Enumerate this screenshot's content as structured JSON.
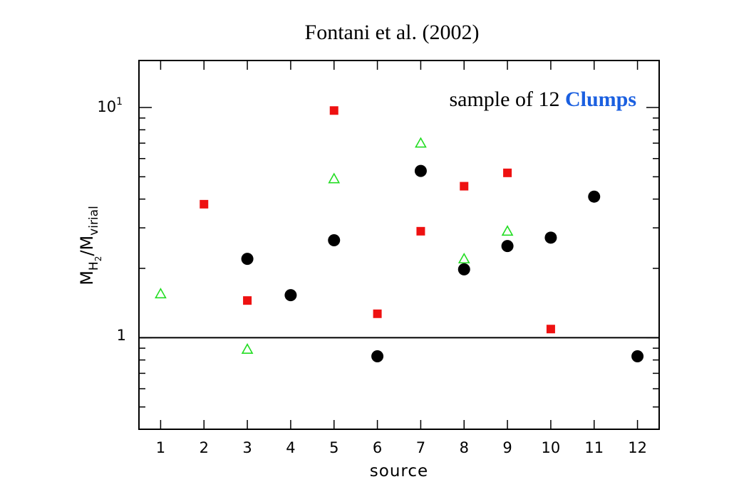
{
  "title": "Fontani et al. (2002)",
  "chart_data": {
    "type": "scatter",
    "title": "Fontani et al. (2002)",
    "annotation": {
      "prefix": "sample of 12 ",
      "highlight": "Clumps",
      "highlight_color": "#1a5fe0"
    },
    "xlabel": "source",
    "ylabel": {
      "main": "M",
      "sub1": "H",
      "sub2": "2",
      "slash": "/M",
      "sub3": "virial"
    },
    "xlim": [
      0.5,
      12.5
    ],
    "ylim": [
      0.4,
      16
    ],
    "yscale": "log",
    "x_ticks": [
      "1",
      "2",
      "3",
      "4",
      "5",
      "6",
      "7",
      "8",
      "9",
      "10",
      "11",
      "12"
    ],
    "y_tick_labels": {
      "one": "1",
      "ten_base": "10",
      "ten_exp": "1"
    },
    "reference_line": 1,
    "grid": false,
    "series": [
      {
        "marker": "square",
        "color": "#ee1111",
        "points": [
          {
            "x": 2,
            "y": 3.8
          },
          {
            "x": 3,
            "y": 1.45
          },
          {
            "x": 5,
            "y": 9.7
          },
          {
            "x": 6,
            "y": 1.27
          },
          {
            "x": 7,
            "y": 2.9
          },
          {
            "x": 8,
            "y": 4.55
          },
          {
            "x": 9,
            "y": 5.2
          },
          {
            "x": 10,
            "y": 1.09
          }
        ]
      },
      {
        "marker": "triangle-open",
        "color": "#22dd22",
        "points": [
          {
            "x": 1,
            "y": 1.55
          },
          {
            "x": 3,
            "y": 0.89
          },
          {
            "x": 5,
            "y": 4.9
          },
          {
            "x": 7,
            "y": 7.0
          },
          {
            "x": 8,
            "y": 2.2
          },
          {
            "x": 9,
            "y": 2.9
          }
        ]
      },
      {
        "marker": "circle",
        "color": "#000000",
        "points": [
          {
            "x": 3,
            "y": 2.2
          },
          {
            "x": 4,
            "y": 1.53
          },
          {
            "x": 5,
            "y": 2.65
          },
          {
            "x": 6,
            "y": 0.83
          },
          {
            "x": 7,
            "y": 5.3
          },
          {
            "x": 8,
            "y": 1.98
          },
          {
            "x": 9,
            "y": 2.5
          },
          {
            "x": 10,
            "y": 2.72
          },
          {
            "x": 11,
            "y": 4.1
          },
          {
            "x": 12,
            "y": 0.83
          }
        ]
      }
    ]
  }
}
